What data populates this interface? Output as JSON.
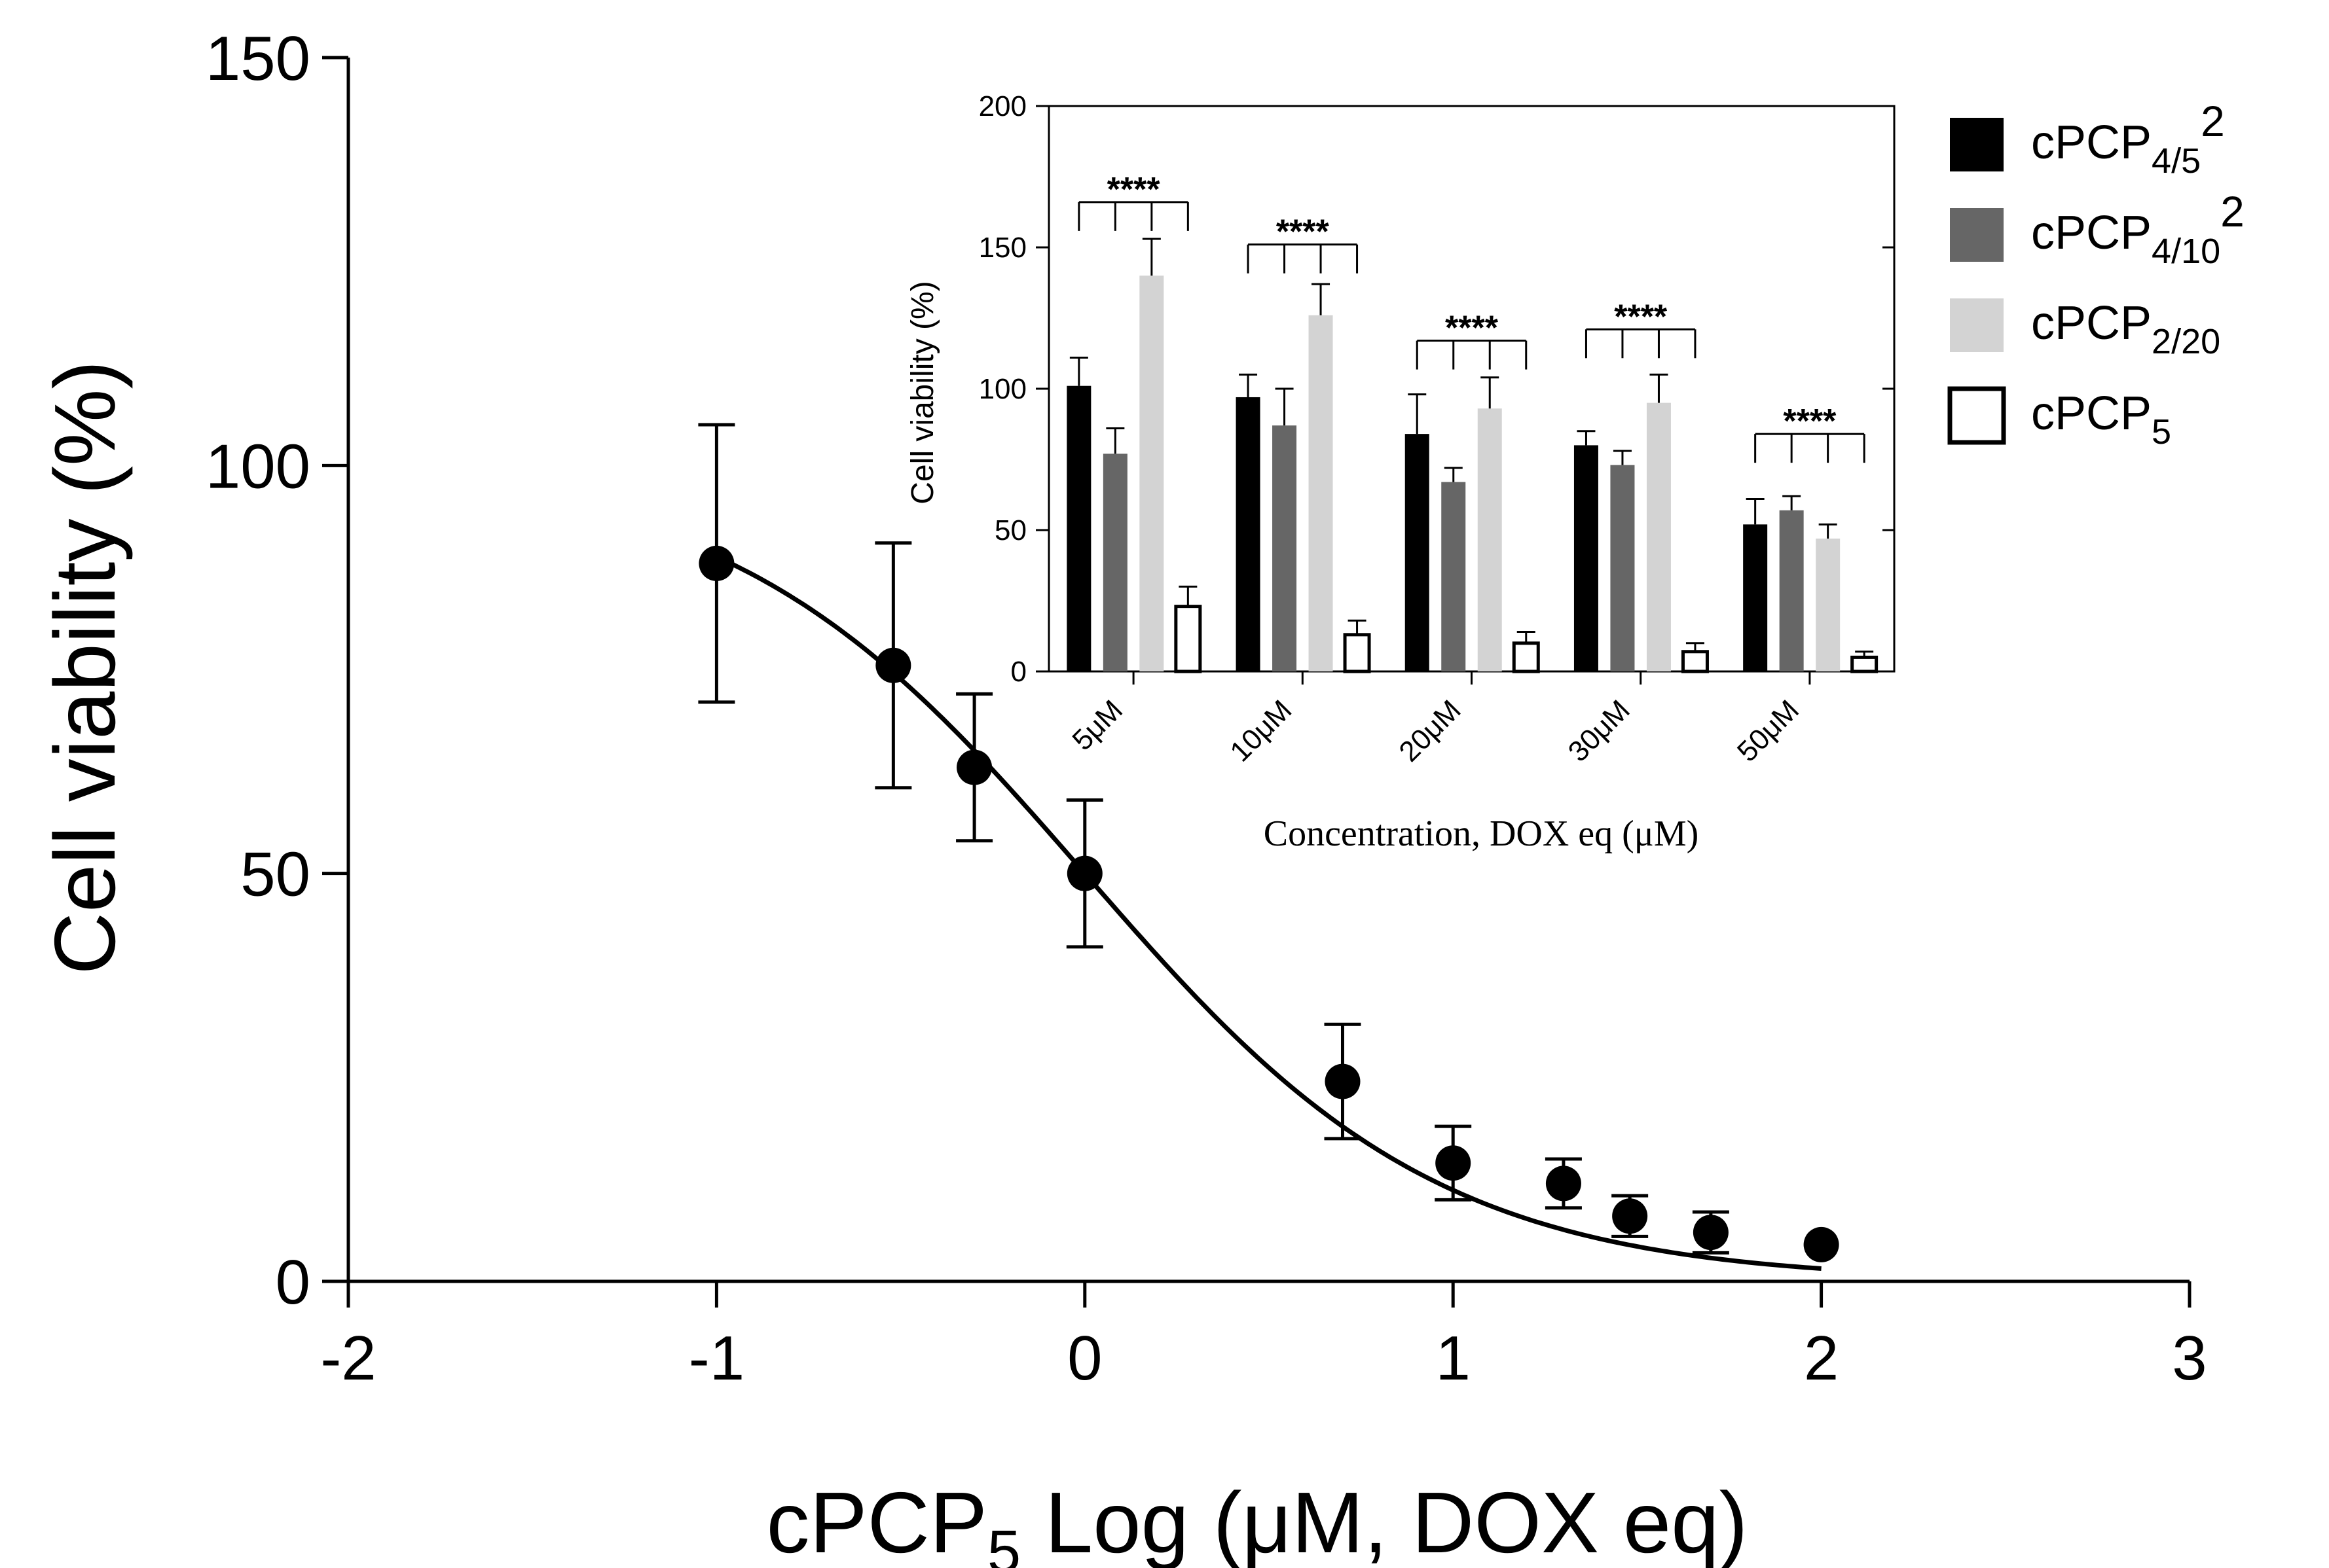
{
  "chart_data": [
    {
      "type": "scatter",
      "title": "",
      "xlabel": "cPCP5 Log (μM, DOX eq)",
      "xlabel_parts": {
        "prefix": "cPCP",
        "subscript": "5",
        "suffix": " Log (μM, DOX eq)"
      },
      "ylabel": "Cell viability (%)",
      "xlim": [
        -2,
        3
      ],
      "ylim": [
        0,
        150
      ],
      "x_ticks": [
        -2,
        -1,
        0,
        1,
        2,
        3
      ],
      "x_tick_labels": [
        "-2",
        "-1",
        "0",
        "1",
        "2",
        "3"
      ],
      "y_ticks": [
        0,
        50,
        100,
        150
      ],
      "y_tick_labels": [
        "0",
        "50",
        "100",
        "150"
      ],
      "points": [
        {
          "x": -1.0,
          "y": 88,
          "err": 17
        },
        {
          "x": -0.52,
          "y": 75.5,
          "err": 15
        },
        {
          "x": -0.3,
          "y": 63,
          "err": 9
        },
        {
          "x": 0.0,
          "y": 50,
          "err": 9
        },
        {
          "x": 0.7,
          "y": 24.5,
          "err": 7
        },
        {
          "x": 1.0,
          "y": 14.5,
          "err": 4.5
        },
        {
          "x": 1.3,
          "y": 12,
          "err": 3
        },
        {
          "x": 1.48,
          "y": 8,
          "err": 2.5
        },
        {
          "x": 1.7,
          "y": 6,
          "err": 2.5
        },
        {
          "x": 2.0,
          "y": 4.5,
          "err": 0
        }
      ],
      "fit": {
        "model": "four-parameter logistic",
        "top": 100,
        "bottom": 0,
        "log_ic50": 0.0,
        "hill_slope": 0.9
      }
    },
    {
      "type": "bar",
      "title": "",
      "xlabel": "Concentration, DOX eq (μM)",
      "ylabel": "Cell viability (%)",
      "ylim": [
        0,
        200
      ],
      "y_ticks": [
        0,
        50,
        100,
        150,
        200
      ],
      "y_tick_labels": [
        "0",
        "50",
        "100",
        "150",
        "200"
      ],
      "categories": [
        "5μM",
        "10μM",
        "20μM",
        "30μM",
        "50μM"
      ],
      "series": [
        {
          "name": "cPCP4/5 2",
          "color": "#000000",
          "values": [
            101,
            97,
            84,
            80,
            52
          ],
          "errors": [
            10,
            8,
            14,
            5,
            9
          ]
        },
        {
          "name": "cPCP4/10 2",
          "color": "#666666",
          "values": [
            77,
            87,
            67,
            73,
            57
          ],
          "errors": [
            9,
            13,
            5,
            5,
            5
          ]
        },
        {
          "name": "cPCP2/20",
          "color": "#d3d3d3",
          "values": [
            140,
            126,
            93,
            95,
            47
          ],
          "errors": [
            13,
            11,
            11,
            10,
            5
          ]
        },
        {
          "name": "cPCP5",
          "color": "#ffffff",
          "values": [
            23,
            13,
            10,
            7,
            5
          ],
          "errors": [
            7,
            5,
            4,
            3,
            2
          ]
        }
      ],
      "significance": [
        {
          "category": "5μM",
          "label": "****",
          "level": 166
        },
        {
          "category": "10μM",
          "label": "****",
          "level": 151
        },
        {
          "category": "20μM",
          "label": "****",
          "level": 117
        },
        {
          "category": "30μM",
          "label": "****",
          "level": 121
        },
        {
          "category": "50μM",
          "label": "****",
          "level": 84
        }
      ]
    }
  ],
  "legend": {
    "position": "top-right",
    "items": [
      {
        "name": "cPCP4/5 2",
        "prefix": "cPCP",
        "sub": "4/5",
        "sup": "2",
        "fill": "#000000"
      },
      {
        "name": "cPCP4/10 2",
        "prefix": "cPCP",
        "sub": "4/10",
        "sup": "2",
        "fill": "#666666"
      },
      {
        "name": "cPCP2/20",
        "prefix": "cPCP",
        "sub": "2/20",
        "sup": "",
        "fill": "#d3d3d3"
      },
      {
        "name": "cPCP5",
        "prefix": "cPCP",
        "sub": "5",
        "sup": "",
        "fill": "#ffffff"
      }
    ]
  }
}
